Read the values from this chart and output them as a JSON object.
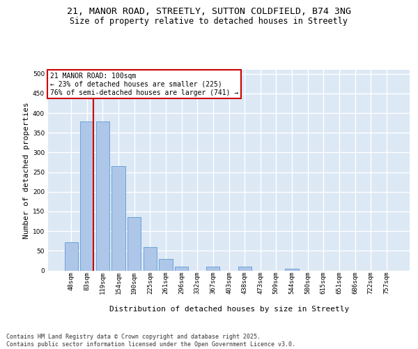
{
  "title_line1": "21, MANOR ROAD, STREETLY, SUTTON COLDFIELD, B74 3NG",
  "title_line2": "Size of property relative to detached houses in Streetly",
  "xlabel": "Distribution of detached houses by size in Streetly",
  "ylabel": "Number of detached properties",
  "categories": [
    "48sqm",
    "83sqm",
    "119sqm",
    "154sqm",
    "190sqm",
    "225sqm",
    "261sqm",
    "296sqm",
    "332sqm",
    "367sqm",
    "403sqm",
    "438sqm",
    "473sqm",
    "509sqm",
    "544sqm",
    "580sqm",
    "615sqm",
    "651sqm",
    "686sqm",
    "722sqm",
    "757sqm"
  ],
  "values": [
    72,
    378,
    378,
    265,
    135,
    60,
    30,
    9,
    0,
    10,
    0,
    10,
    0,
    0,
    4,
    0,
    0,
    0,
    0,
    0,
    0
  ],
  "bar_color": "#aec6e8",
  "bar_edge_color": "#5a9bd5",
  "background_color": "#dde8f5",
  "grid_color": "#ffffff",
  "vline_x_idx": 1,
  "vline_color": "#cc0000",
  "annotation_text": "21 MANOR ROAD: 100sqm\n← 23% of detached houses are smaller (225)\n76% of semi-detached houses are larger (741) →",
  "annotation_box_edgecolor": "#cc0000",
  "footnote": "Contains HM Land Registry data © Crown copyright and database right 2025.\nContains public sector information licensed under the Open Government Licence v3.0.",
  "ylim": [
    0,
    510
  ],
  "yticks": [
    0,
    50,
    100,
    150,
    200,
    250,
    300,
    350,
    400,
    450,
    500
  ],
  "title_fontsize": 9.5,
  "subtitle_fontsize": 8.5,
  "tick_fontsize": 6.5,
  "ylabel_fontsize": 8,
  "xlabel_fontsize": 8,
  "footnote_fontsize": 6,
  "annotation_fontsize": 7
}
